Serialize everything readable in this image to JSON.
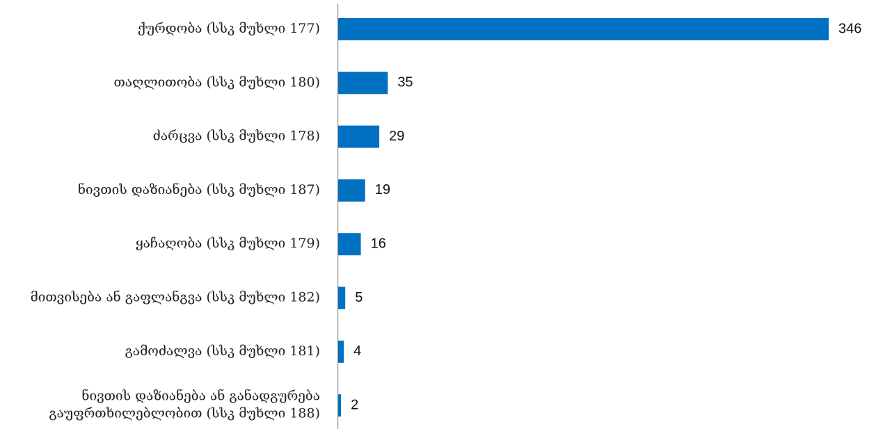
{
  "chart_data": {
    "type": "bar",
    "orientation": "horizontal",
    "title": "",
    "xlabel": "",
    "ylabel": "",
    "categories": [
      "ქურდობა (სსკ მუხლი 177)",
      "თაღლითობა (სსკ მუხლი 180)",
      "ძარცვა (სსკ მუხლი 178)",
      "ნივთის დაზიანება (სსკ მუხლი 187)",
      "ყაჩაღობა (სსკ მუხლი 179)",
      "მითვისება ან გაფლანგვა (სსკ მუხლი 182)",
      "გამოძალვა (სსკ მუხლი 181)",
      [
        "ნივთის დაზიანება ან განადგურება",
        "გაუფრთხილებლობით  (სსკ  მუხლი 188)"
      ]
    ],
    "values": [
      346,
      35,
      29,
      19,
      16,
      5,
      4,
      2
    ],
    "xlim": [
      0,
      346
    ],
    "grid": false,
    "legend": "none",
    "colors": {
      "bar": "#0070C0",
      "axis": "#A6A6A6"
    }
  }
}
